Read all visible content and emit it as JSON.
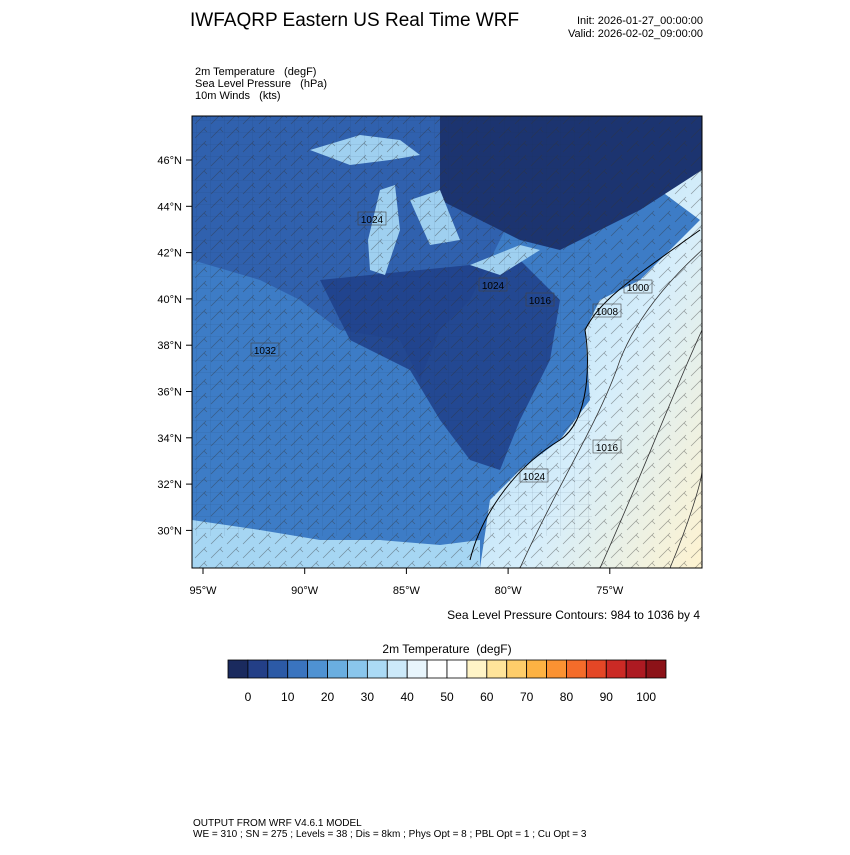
{
  "header": {
    "title": "IWFAQRP Eastern US Real Time WRF",
    "init": "Init: 2026-01-27_00:00:00",
    "valid": "Valid: 2026-02-02_09:00:00"
  },
  "fields": [
    "2m Temperature   (degF)",
    "Sea Level Pressure   (hPa)",
    "10m Winds   (kts)"
  ],
  "map": {
    "lat_labels": [
      "46°N",
      "44°N",
      "42°N",
      "40°N",
      "38°N",
      "36°N",
      "34°N",
      "32°N",
      "30°N"
    ],
    "lon_labels": [
      "95°W",
      "90°W",
      "85°W",
      "80°W",
      "75°W"
    ],
    "contour_labels": [
      "1024",
      "1024",
      "1016",
      "1000",
      "1008",
      "1032",
      "1016",
      "1024"
    ]
  },
  "contour_note": "Sea Level Pressure Contours: 984 to 1036 by 4",
  "colorbar": {
    "title": "2m Temperature  (degF)",
    "lim": [
      -5,
      105
    ],
    "ticks": [
      0,
      10,
      20,
      30,
      40,
      50,
      60,
      70,
      80,
      90,
      100
    ],
    "colors": [
      "#1a2a5e",
      "#233f87",
      "#2c5aa6",
      "#3a74bf",
      "#4f92d2",
      "#6aaee0",
      "#8ac6ec",
      "#abdaf5",
      "#cce9f9",
      "#e8f5fc",
      "#ffffff",
      "#ffffff",
      "#fff4c7",
      "#ffe49a",
      "#fecd6a",
      "#fdb243",
      "#fb9232",
      "#f46c2a",
      "#e44726",
      "#cb2a25",
      "#ad1a22",
      "#8c1218"
    ]
  },
  "footer": [
    "OUTPUT FROM WRF V4.6.1 MODEL",
    "WE = 310 ; SN = 275 ; Levels = 38 ; Dis = 8km ; Phys Opt = 8 ; PBL Opt = 1 ; Cu Opt = 3"
  ]
}
